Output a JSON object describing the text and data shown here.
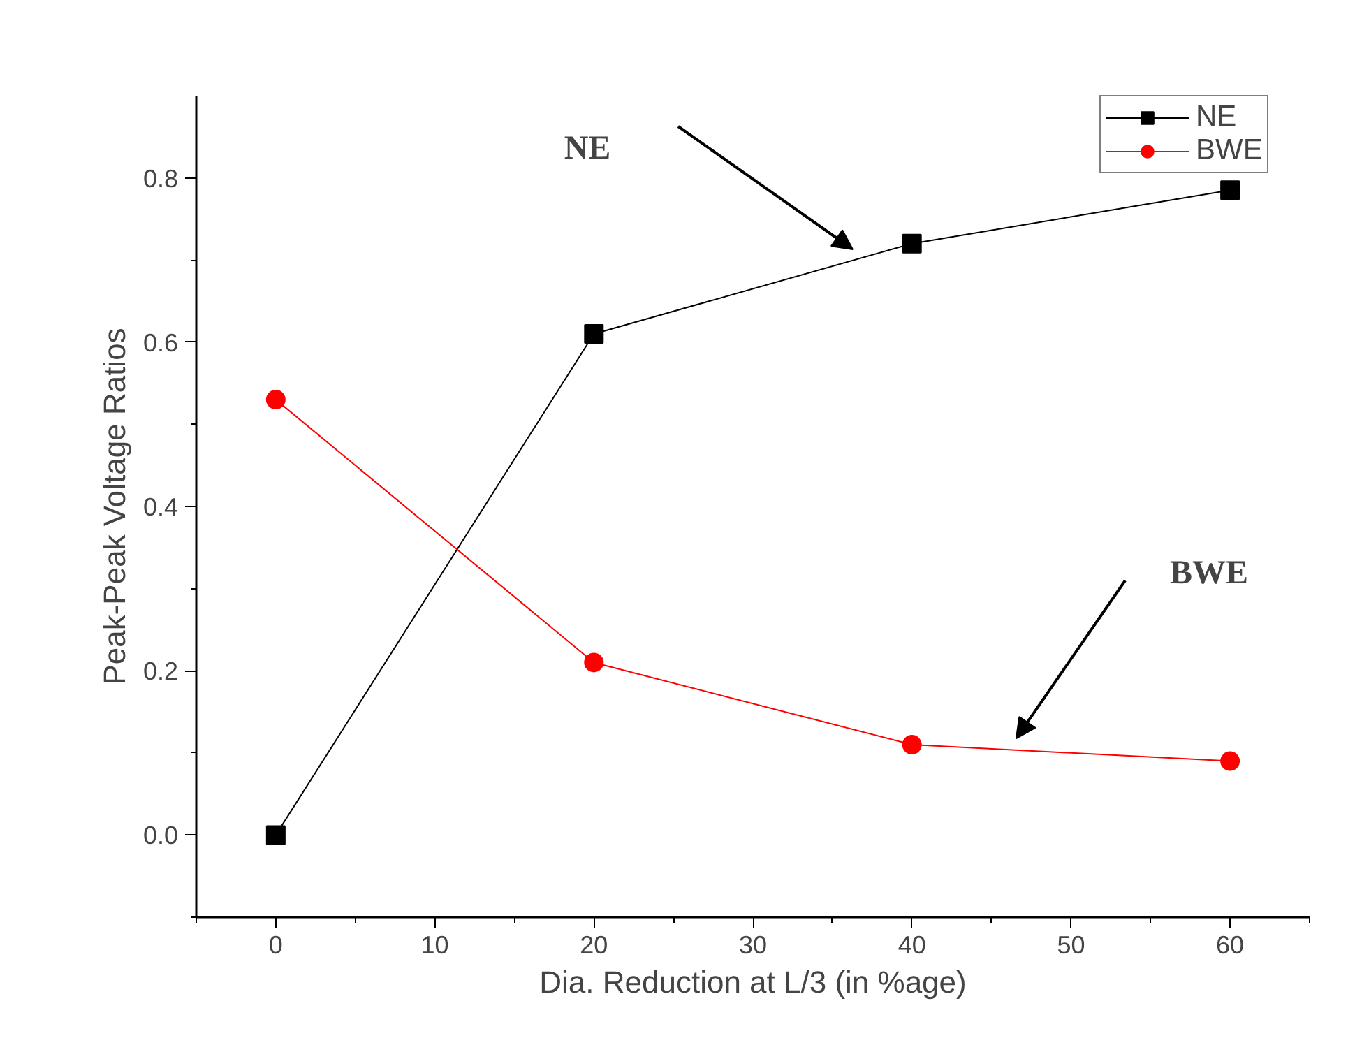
{
  "chart_data": {
    "type": "line",
    "xlabel": "Dia. Reduction at L/3 (in %age)",
    "ylabel": "Peak-Peak Voltage Ratios",
    "x": [
      0,
      20,
      40,
      60
    ],
    "series": [
      {
        "name": "NE",
        "color": "#000000",
        "marker": "square",
        "values": [
          0,
          0.61,
          0.72,
          0.785
        ]
      },
      {
        "name": "BWE",
        "color": "#ff0000",
        "marker": "circle",
        "values": [
          0.53,
          0.21,
          0.11,
          0.09
        ]
      }
    ],
    "annotations": [
      "NE",
      "BWE"
    ],
    "xlim": [
      -5,
      65
    ],
    "xticks": [
      0,
      10,
      20,
      30,
      40,
      50,
      60
    ],
    "ylim": [
      -0.1,
      0.9
    ],
    "yticks": [
      {
        "value": 0,
        "label": "0.0"
      },
      0.2,
      0.4,
      0.6,
      0.8
    ],
    "grid": false,
    "legend": "top right",
    "line_style": "solid"
  }
}
